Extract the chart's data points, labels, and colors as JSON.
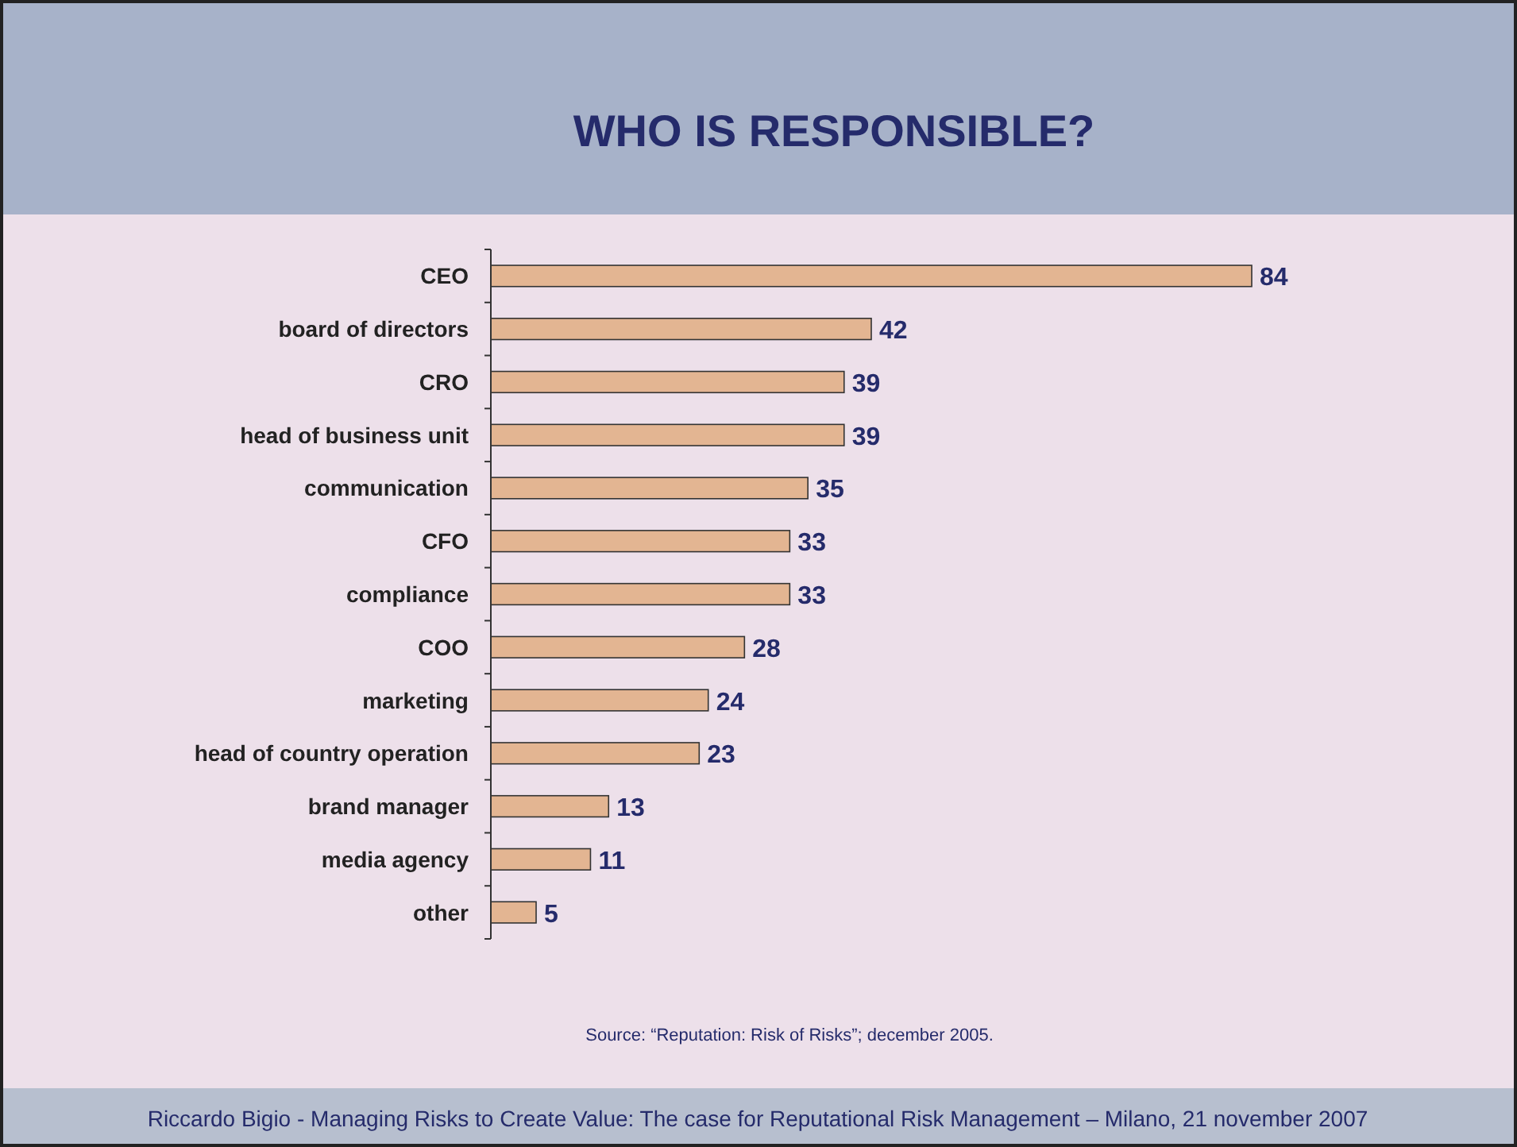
{
  "chart_data": {
    "type": "bar",
    "orientation": "horizontal",
    "title": "WHO IS RESPONSIBLE?",
    "categories": [
      "CEO",
      "board of directors",
      "CRO",
      "head of business unit",
      "communication",
      "CFO",
      "compliance",
      "COO",
      "marketing",
      "head of country operation",
      "brand manager",
      "media agency",
      "other"
    ],
    "values": [
      84,
      42,
      39,
      39,
      35,
      33,
      33,
      28,
      24,
      23,
      13,
      11,
      5
    ],
    "color": "#e3b592",
    "data_labels": true,
    "annotations": [
      "Source: “Reputation: Risk of Risks”; december 2005.",
      "Riccardo Bigio - Managing Risks to Create Value: The case for Reputational Risk Management – Milano, 21 november 2007"
    ]
  }
}
